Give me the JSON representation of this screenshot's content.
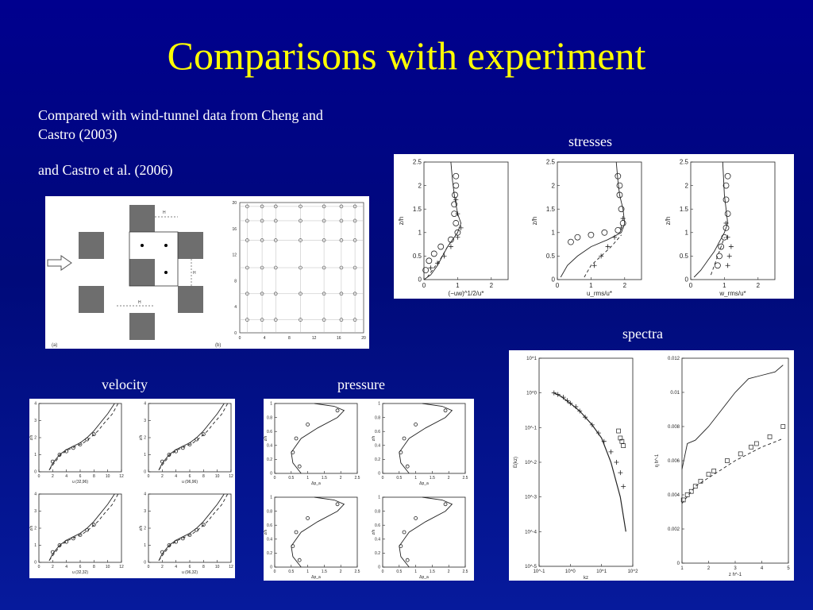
{
  "slide": {
    "title": "Comparisons with experiment",
    "text_line1": "Compared with wind-tunnel data from Cheng and",
    "text_line2": "Castro (2003)",
    "text_line3": "and Castro et al. (2006)"
  },
  "captions": {
    "stresses": "stresses",
    "spectra": "spectra",
    "velocity": "velocity",
    "pressure": "pressure"
  },
  "layout_figure": {
    "label_a": "(a)",
    "label_b": "(b)",
    "dim_h": "H",
    "y_ticks": [
      "0",
      "4",
      "8",
      "12",
      "16",
      "20"
    ],
    "x_ticks": [
      "0",
      "4",
      "8",
      "12",
      "16",
      "20"
    ]
  },
  "chart_data": [
    {
      "type": "line",
      "title": "",
      "xlabel": "(−uw)^1/2/u*",
      "ylabel": "z/h",
      "xlim": [
        0,
        2.5
      ],
      "ylim": [
        0,
        2.5
      ],
      "x_ticks": [
        "0",
        "1",
        "2"
      ],
      "y_ticks": [
        "0",
        "0.5",
        "1",
        "1.5",
        "2",
        "2.5"
      ],
      "series": [
        {
          "style": "solid",
          "x": [
            0,
            0.2,
            0.4,
            0.55,
            0.7,
            0.9,
            1.0,
            1.1,
            1.0,
            0.95,
            0.9,
            0.85,
            0.8
          ],
          "y": [
            0,
            0.1,
            0.3,
            0.5,
            0.7,
            0.9,
            1.0,
            1.2,
            1.4,
            1.6,
            1.8,
            2.1,
            2.5
          ]
        },
        {
          "style": "dashed",
          "x": [
            0.1,
            0.3,
            0.5,
            0.7,
            0.9,
            1.0
          ],
          "y": [
            0.05,
            0.25,
            0.45,
            0.7,
            0.9,
            1.0
          ]
        },
        {
          "style": "circles",
          "x": [
            0.05,
            0.15,
            0.3,
            0.5,
            0.8,
            1.0,
            0.95,
            0.9,
            0.9,
            0.92,
            0.95,
            0.95
          ],
          "y": [
            0.2,
            0.4,
            0.55,
            0.7,
            0.85,
            1.0,
            1.2,
            1.4,
            1.6,
            1.8,
            2.0,
            2.2
          ]
        },
        {
          "style": "plus",
          "x": [
            0.2,
            0.4,
            0.6,
            0.8,
            1.0,
            1.1,
            1.0,
            0.95
          ],
          "y": [
            0.25,
            0.35,
            0.5,
            0.7,
            0.9,
            1.1,
            1.4,
            1.7
          ]
        }
      ]
    },
    {
      "type": "line",
      "title": "",
      "xlabel": "u_rms/u*",
      "ylabel": "z/h",
      "xlim": [
        0,
        2.5
      ],
      "ylim": [
        0,
        2.5
      ],
      "x_ticks": [
        "0",
        "1",
        "2"
      ],
      "y_ticks": [
        "0",
        "0.5",
        "1",
        "1.5",
        "2",
        "2.5"
      ],
      "series": [
        {
          "style": "solid",
          "x": [
            0.1,
            0.3,
            0.6,
            1.0,
            1.5,
            1.9,
            2.0,
            1.95,
            1.85,
            1.8,
            1.75
          ],
          "y": [
            0.05,
            0.3,
            0.5,
            0.7,
            0.85,
            1.0,
            1.2,
            1.5,
            1.8,
            2.1,
            2.5
          ]
        },
        {
          "style": "dashed",
          "x": [
            0.8,
            1.0,
            1.3,
            1.6,
            1.9
          ],
          "y": [
            0.05,
            0.3,
            0.5,
            0.7,
            0.95
          ]
        },
        {
          "style": "circles",
          "x": [
            0.4,
            0.6,
            1.0,
            1.4,
            1.8,
            1.95,
            1.9,
            1.85,
            1.85,
            1.8
          ],
          "y": [
            0.8,
            0.9,
            0.95,
            1.0,
            1.05,
            1.2,
            1.5,
            1.8,
            2.0,
            2.2
          ]
        },
        {
          "style": "plus",
          "x": [
            1.1,
            1.3,
            1.5,
            1.7,
            1.9,
            1.95
          ],
          "y": [
            0.3,
            0.5,
            0.7,
            0.9,
            1.1,
            1.3
          ]
        }
      ]
    },
    {
      "type": "line",
      "title": "",
      "xlabel": "w_rms/u*",
      "ylabel": "z/h",
      "xlim": [
        0,
        2.5
      ],
      "ylim": [
        0,
        2.5
      ],
      "x_ticks": [
        "0",
        "1",
        "2"
      ],
      "y_ticks": [
        "0",
        "0.5",
        "1",
        "1.5",
        "2",
        "2.5"
      ],
      "series": [
        {
          "style": "solid",
          "x": [
            0.1,
            0.3,
            0.5,
            0.7,
            0.85,
            1.0,
            1.1,
            1.05,
            1.0,
            0.95
          ],
          "y": [
            0.05,
            0.2,
            0.4,
            0.6,
            0.8,
            1.0,
            1.2,
            1.5,
            1.8,
            2.5
          ]
        },
        {
          "style": "dashed",
          "x": [
            0.6,
            0.7,
            0.8,
            0.9,
            1.0
          ],
          "y": [
            0.1,
            0.3,
            0.5,
            0.7,
            0.9
          ]
        },
        {
          "style": "circles",
          "x": [
            0.8,
            0.85,
            0.9,
            1.0,
            1.05,
            1.1,
            1.05,
            1.05,
            1.1
          ],
          "y": [
            0.3,
            0.5,
            0.7,
            0.9,
            1.1,
            1.4,
            1.7,
            2.0,
            2.2
          ]
        },
        {
          "style": "plus",
          "x": [
            1.1,
            1.15,
            1.2,
            1.1,
            1.05
          ],
          "y": [
            0.3,
            0.5,
            0.7,
            0.9,
            1.2
          ]
        }
      ]
    },
    {
      "type": "scatter",
      "title": "",
      "xlabel": "kz",
      "ylabel": "E(kz)",
      "x_scale": "log",
      "y_scale": "log",
      "xlim": [
        0.1,
        100
      ],
      "ylim": [
        1e-05,
        10
      ],
      "x_ticks": [
        "10^-1",
        "10^0",
        "10^1",
        "10^2"
      ],
      "y_ticks": [
        "10^1",
        "10^0",
        "10^-1",
        "10^-2",
        "10^-3",
        "10^-4",
        "10^-5"
      ],
      "series": [
        {
          "style": "line",
          "x": [
            0.3,
            0.5,
            1,
            2,
            5,
            10,
            20,
            40,
            60
          ],
          "y": [
            1,
            0.8,
            0.5,
            0.3,
            0.12,
            0.05,
            0.01,
            0.001,
            0.0001
          ]
        },
        {
          "style": "plus",
          "x": [
            0.3,
            0.4,
            0.6,
            0.8,
            1,
            1.5,
            2,
            3,
            5,
            8,
            12,
            20,
            30,
            40,
            50
          ],
          "y": [
            1.0,
            0.9,
            0.75,
            0.6,
            0.5,
            0.4,
            0.3,
            0.2,
            0.12,
            0.07,
            0.04,
            0.02,
            0.01,
            0.005,
            0.002
          ]
        },
        {
          "style": "squares",
          "x": [
            35,
            40,
            45,
            50
          ],
          "y": [
            0.08,
            0.05,
            0.04,
            0.03
          ]
        }
      ]
    },
    {
      "type": "line",
      "title": "",
      "xlabel": "z h^-1",
      "ylabel": "η h^-1",
      "xlim": [
        1,
        5
      ],
      "ylim": [
        0,
        0.012
      ],
      "x_ticks": [
        "1",
        "2",
        "3",
        "4",
        "5"
      ],
      "y_ticks": [
        "0",
        "0.002",
        "0.004",
        "0.006",
        "0.008",
        "0.01",
        "0.012"
      ],
      "series": [
        {
          "style": "solid",
          "x": [
            1,
            1.2,
            1.5,
            2,
            2.5,
            3,
            3.5,
            4,
            4.5,
            4.8
          ],
          "y": [
            0.0055,
            0.007,
            0.0072,
            0.008,
            0.009,
            0.01,
            0.0108,
            0.011,
            0.0112,
            0.0116
          ]
        },
        {
          "style": "dashed",
          "x": [
            1,
            1.5,
            2,
            2.5,
            3,
            3.5,
            4,
            4.5,
            4.8
          ],
          "y": [
            0.0035,
            0.0045,
            0.005,
            0.0055,
            0.006,
            0.0064,
            0.0068,
            0.0071,
            0.0073
          ]
        },
        {
          "style": "squares",
          "x": [
            1.05,
            1.2,
            1.35,
            1.5,
            1.7,
            2.0,
            2.2,
            2.7,
            3.2,
            3.6,
            3.8,
            4.3,
            4.8
          ],
          "y": [
            0.0037,
            0.004,
            0.0042,
            0.0045,
            0.0048,
            0.0052,
            0.0054,
            0.006,
            0.0064,
            0.0068,
            0.007,
            0.0074,
            0.008
          ]
        }
      ]
    },
    {
      "type": "line",
      "title": "",
      "panels": [
        {
          "xlabel": "u (32,96)",
          "ylabel": "z/h"
        },
        {
          "xlabel": "u (96,96)",
          "ylabel": "z/h"
        },
        {
          "xlabel": "u (32,32)",
          "ylabel": "z/h"
        },
        {
          "xlabel": "u (96,32)",
          "ylabel": "z/h"
        }
      ],
      "xlim": [
        0,
        12
      ],
      "ylim": [
        0,
        4
      ],
      "x_ticks": [
        "0",
        "2",
        "4",
        "6",
        "8",
        "10",
        "12"
      ],
      "y_ticks": [
        "0",
        "1",
        "2",
        "3",
        "4"
      ],
      "series": [
        {
          "style": "solid",
          "x": [
            1.5,
            2,
            3,
            4,
            5,
            6,
            7,
            8,
            9,
            10,
            11
          ],
          "y": [
            0.1,
            0.5,
            1.0,
            1.3,
            1.5,
            1.7,
            2.0,
            2.4,
            2.9,
            3.4,
            4.0
          ]
        },
        {
          "style": "dashed",
          "x": [
            1.5,
            2.2,
            3.2,
            4.3,
            5.4,
            6.5,
            7.5,
            8.6,
            9.6,
            10.7,
            11.5
          ],
          "y": [
            0.1,
            0.5,
            1.0,
            1.3,
            1.5,
            1.7,
            2.0,
            2.4,
            2.9,
            3.4,
            4.0
          ]
        },
        {
          "style": "circles",
          "x": [
            2,
            3,
            4,
            5,
            6,
            7,
            8
          ],
          "y": [
            0.6,
            1.0,
            1.2,
            1.4,
            1.6,
            1.9,
            2.2
          ]
        }
      ]
    },
    {
      "type": "line",
      "title": "",
      "panels": [
        {
          "xlabel": "Δp_a",
          "ylabel": "z/h"
        },
        {
          "xlabel": "Δp_a",
          "ylabel": "z/h"
        },
        {
          "xlabel": "Δp_a",
          "ylabel": "z/h"
        },
        {
          "xlabel": "Δp_a",
          "ylabel": "z/h"
        }
      ],
      "xlim": [
        0,
        2.5
      ],
      "ylim": [
        0,
        1
      ],
      "x_ticks": [
        "0",
        "0.5",
        "1",
        "1.5",
        "2",
        "2.5"
      ],
      "y_ticks": [
        "0",
        "0.2",
        "0.4",
        "0.6",
        "0.8",
        "1"
      ],
      "series": [
        {
          "style": "solid",
          "x": [
            0.8,
            0.55,
            0.5,
            0.8,
            1.3,
            1.9,
            2.1,
            1.8,
            1.2
          ],
          "y": [
            0,
            0.15,
            0.3,
            0.5,
            0.65,
            0.8,
            0.9,
            0.96,
            1.0
          ]
        },
        {
          "style": "circles",
          "x": [
            0.75,
            0.55,
            0.65,
            1.0,
            1.9
          ],
          "y": [
            0.1,
            0.3,
            0.5,
            0.7,
            0.9
          ]
        }
      ]
    }
  ]
}
